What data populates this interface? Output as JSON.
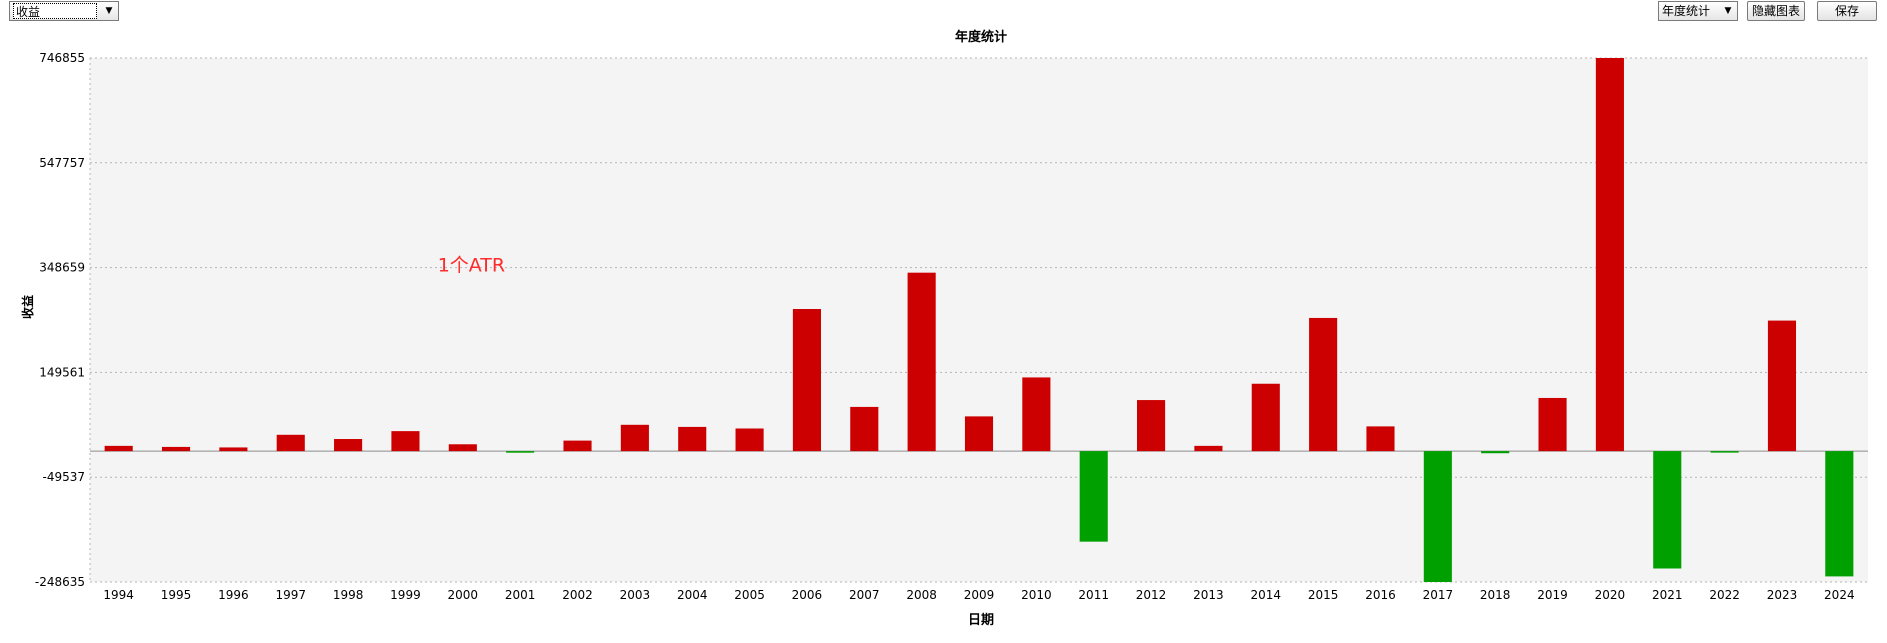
{
  "toolbar": {
    "metric_select": "收益",
    "period_select": "年度统计",
    "hide_chart_label": "隐藏图表",
    "save_label": "保存",
    "dropdown_arrow": "▼"
  },
  "colors": {
    "positive": "#cc0000",
    "negative": "#00a000",
    "plot_bg": "#f4f4f4",
    "grid": "#b4b4b4",
    "annotation": "#ff2a2a"
  },
  "chart_data": {
    "type": "bar",
    "title": "年度统计",
    "xlabel": "日期",
    "ylabel": "收益",
    "annotation": "1个ATR",
    "ylim": [
      -248635,
      746855
    ],
    "yticks": [
      -248635,
      -49537,
      149561,
      348659,
      547757,
      746855
    ],
    "ytick_labels": [
      "-248635",
      "-49537",
      "149561",
      "348659",
      "547757",
      "746855"
    ],
    "grid": true,
    "categories": [
      "1994",
      "1995",
      "1996",
      "1997",
      "1998",
      "1999",
      "2000",
      "2001",
      "2002",
      "2003",
      "2004",
      "2005",
      "2006",
      "2007",
      "2008",
      "2009",
      "2010",
      "2011",
      "2012",
      "2013",
      "2014",
      "2015",
      "2016",
      "2017",
      "2018",
      "2019",
      "2020",
      "2021",
      "2022",
      "2023",
      "2024"
    ],
    "values": [
      10000,
      8000,
      7000,
      31000,
      23000,
      38000,
      13000,
      -3000,
      20000,
      50000,
      46000,
      43000,
      270000,
      84000,
      339000,
      66000,
      140000,
      -172000,
      97000,
      10000,
      128000,
      253000,
      47000,
      -248635,
      -4000,
      101000,
      746855,
      -223000,
      -2000,
      248000,
      -238000
    ]
  }
}
